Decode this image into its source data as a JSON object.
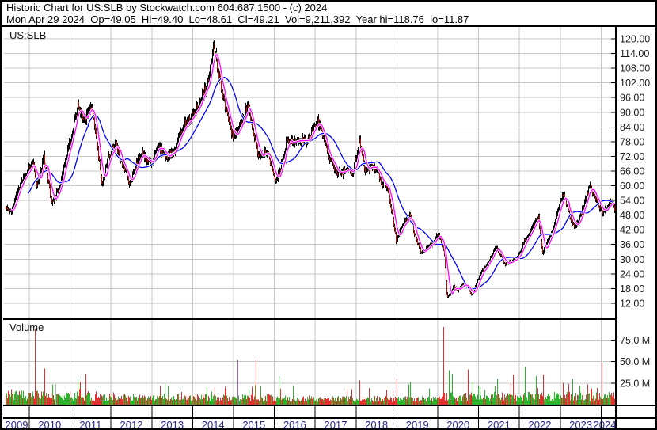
{
  "header": {
    "title_line": "Historic Chart for US:SLB by Stockwatch.com 604.687.1500 - (c) 2024",
    "quote_line": "Mon Apr 29 2024  Op=49.05  Hi=49.40  Lo=48.61  Cl=49.21  Vol=9,211,392  Year hi=118.76  lo=11.87"
  },
  "price_pane": {
    "symbol": "US:SLB"
  },
  "volume_pane": {
    "label": "Volume"
  },
  "chart_data": {
    "type": "candlestick",
    "title": "Historic Chart for US:SLB by Stockwatch.com 604.687.1500 - (c) 2024",
    "symbol": "US:SLB",
    "date": "Mon Apr 29 2024",
    "quote": {
      "open": 49.05,
      "high": 49.4,
      "low": 48.61,
      "close": 49.21,
      "volume": "9,211,392",
      "year_high": 118.76,
      "year_low": 11.87
    },
    "x_axis": {
      "start": 2009.4,
      "end": 2024.33,
      "years": [
        "2009",
        "2010",
        "2011",
        "2012",
        "2013",
        "2014",
        "2015",
        "2016",
        "2017",
        "2018",
        "2019",
        "2020",
        "2021",
        "2022",
        "2023",
        "2024"
      ]
    },
    "price_axis": {
      "min": 12,
      "max": 120,
      "step": 6,
      "tick_labels": [
        "120.00",
        "114.00",
        "108.00",
        "102.00",
        "96.00",
        "90.00",
        "84.00",
        "78.00",
        "72.00",
        "66.00",
        "60.00",
        "54.00",
        "48.00",
        "42.00",
        "36.00",
        "30.00",
        "24.00",
        "18.00",
        "12.00"
      ]
    },
    "volume_axis": {
      "ticks_millions": [
        75,
        50,
        25
      ],
      "tick_labels": [
        "75.0 M",
        "50.0 M",
        "25.0 M"
      ]
    },
    "colors": {
      "candle_up": "#000000",
      "candle_down": "#dd0000",
      "ma_fast": "#ff00ff",
      "ma_slow": "#0000ff",
      "vol_up": "#2db32d",
      "vol_down": "#e03030",
      "grid": "#c6c6c6",
      "border": "#000000",
      "price_label": "#1c1c1c",
      "year_label": "#28288c"
    },
    "moving_averages": {
      "fast_weeks": 8,
      "slow_weeks": 30
    },
    "price_path": [
      [
        2009.4,
        52
      ],
      [
        2009.55,
        49
      ],
      [
        2009.75,
        59
      ],
      [
        2009.95,
        66
      ],
      [
        2010.08,
        70
      ],
      [
        2010.18,
        60
      ],
      [
        2010.35,
        71
      ],
      [
        2010.55,
        53
      ],
      [
        2010.75,
        60
      ],
      [
        2010.92,
        74
      ],
      [
        2011.05,
        83
      ],
      [
        2011.18,
        94
      ],
      [
        2011.3,
        86
      ],
      [
        2011.42,
        89
      ],
      [
        2011.54,
        92
      ],
      [
        2011.65,
        78
      ],
      [
        2011.78,
        60
      ],
      [
        2011.9,
        70
      ],
      [
        2012.1,
        77
      ],
      [
        2012.25,
        70
      ],
      [
        2012.45,
        61
      ],
      [
        2012.6,
        68
      ],
      [
        2012.75,
        73
      ],
      [
        2012.95,
        69
      ],
      [
        2013.15,
        76
      ],
      [
        2013.35,
        72
      ],
      [
        2013.55,
        74
      ],
      [
        2013.75,
        84
      ],
      [
        2013.95,
        88
      ],
      [
        2014.1,
        92
      ],
      [
        2014.25,
        98
      ],
      [
        2014.38,
        102
      ],
      [
        2014.5,
        117
      ],
      [
        2014.6,
        108
      ],
      [
        2014.72,
        98
      ],
      [
        2014.85,
        88
      ],
      [
        2014.97,
        80
      ],
      [
        2015.1,
        82
      ],
      [
        2015.22,
        88
      ],
      [
        2015.35,
        93
      ],
      [
        2015.5,
        82
      ],
      [
        2015.62,
        72
      ],
      [
        2015.75,
        74
      ],
      [
        2015.88,
        71
      ],
      [
        2016.03,
        61
      ],
      [
        2016.15,
        68
      ],
      [
        2016.3,
        79
      ],
      [
        2016.45,
        77
      ],
      [
        2016.6,
        79
      ],
      [
        2016.75,
        78
      ],
      [
        2016.92,
        82
      ],
      [
        2017.05,
        86
      ],
      [
        2017.2,
        78
      ],
      [
        2017.35,
        72
      ],
      [
        2017.5,
        66
      ],
      [
        2017.62,
        64
      ],
      [
        2017.75,
        68
      ],
      [
        2017.9,
        64
      ],
      [
        2018.02,
        74
      ],
      [
        2018.08,
        79
      ],
      [
        2018.22,
        66
      ],
      [
        2018.35,
        68
      ],
      [
        2018.5,
        67
      ],
      [
        2018.62,
        61
      ],
      [
        2018.75,
        60
      ],
      [
        2018.88,
        48
      ],
      [
        2018.97,
        37
      ],
      [
        2019.1,
        44
      ],
      [
        2019.25,
        46
      ],
      [
        2019.32,
        48
      ],
      [
        2019.45,
        39
      ],
      [
        2019.6,
        32
      ],
      [
        2019.72,
        34
      ],
      [
        2019.85,
        36
      ],
      [
        2019.97,
        40
      ],
      [
        2020.08,
        38
      ],
      [
        2020.15,
        33
      ],
      [
        2020.22,
        14
      ],
      [
        2020.3,
        16
      ],
      [
        2020.38,
        19
      ],
      [
        2020.48,
        17
      ],
      [
        2020.58,
        20
      ],
      [
        2020.7,
        19
      ],
      [
        2020.82,
        15.5
      ],
      [
        2020.92,
        19
      ],
      [
        2021.03,
        24
      ],
      [
        2021.15,
        27
      ],
      [
        2021.28,
        30
      ],
      [
        2021.42,
        35
      ],
      [
        2021.55,
        31
      ],
      [
        2021.65,
        28
      ],
      [
        2021.78,
        29
      ],
      [
        2021.9,
        30
      ],
      [
        2022.02,
        33
      ],
      [
        2022.12,
        38
      ],
      [
        2022.25,
        41
      ],
      [
        2022.38,
        45
      ],
      [
        2022.46,
        47
      ],
      [
        2022.55,
        32
      ],
      [
        2022.65,
        36
      ],
      [
        2022.78,
        41
      ],
      [
        2022.9,
        48
      ],
      [
        2022.98,
        53
      ],
      [
        2023.05,
        57
      ],
      [
        2023.15,
        52
      ],
      [
        2023.25,
        47
      ],
      [
        2023.37,
        43
      ],
      [
        2023.5,
        48
      ],
      [
        2023.62,
        55
      ],
      [
        2023.73,
        60
      ],
      [
        2023.85,
        55
      ],
      [
        2023.95,
        52
      ],
      [
        2024.05,
        49
      ],
      [
        2024.15,
        51
      ],
      [
        2024.25,
        54
      ],
      [
        2024.3,
        51
      ],
      [
        2024.33,
        49.2
      ]
    ],
    "volume_profile_multipliers": [
      [
        2009.4,
        2011.5,
        1.25
      ],
      [
        2011.5,
        2016.0,
        0.95
      ],
      [
        2016.0,
        2020.0,
        0.8
      ],
      [
        2020.0,
        2024.33,
        1.15
      ]
    ],
    "volume_spikes": [
      [
        2010.12,
        88,
        "#e03030"
      ],
      [
        2010.35,
        42,
        "#e03030"
      ],
      [
        2010.62,
        24,
        "#b8b8b8"
      ],
      [
        2011.16,
        30,
        "#2db32d"
      ],
      [
        2011.36,
        36,
        "#e03030"
      ],
      [
        2013.3,
        25,
        "#2db32d"
      ],
      [
        2015.08,
        52,
        "#a565c8"
      ],
      [
        2015.55,
        52,
        "#e03030"
      ],
      [
        2016.1,
        33,
        "#2db32d"
      ],
      [
        2018.08,
        28,
        "#e03030"
      ],
      [
        2018.97,
        30,
        "#e03030"
      ],
      [
        2019.32,
        26,
        "#2db32d"
      ],
      [
        2020.12,
        90,
        "#e03030"
      ],
      [
        2020.26,
        40,
        "#2db32d"
      ],
      [
        2020.33,
        36,
        "#2db32d"
      ],
      [
        2020.72,
        41,
        "#e03030"
      ],
      [
        2021.45,
        30,
        "#2db32d"
      ],
      [
        2021.84,
        35,
        "#e03030"
      ],
      [
        2022.13,
        44,
        "#2db32d"
      ],
      [
        2022.4,
        33,
        "#2db32d"
      ],
      [
        2022.56,
        35,
        "#e03030"
      ],
      [
        2023.3,
        30,
        "#2db32d"
      ],
      [
        2024.01,
        49,
        "#e03030"
      ]
    ]
  }
}
